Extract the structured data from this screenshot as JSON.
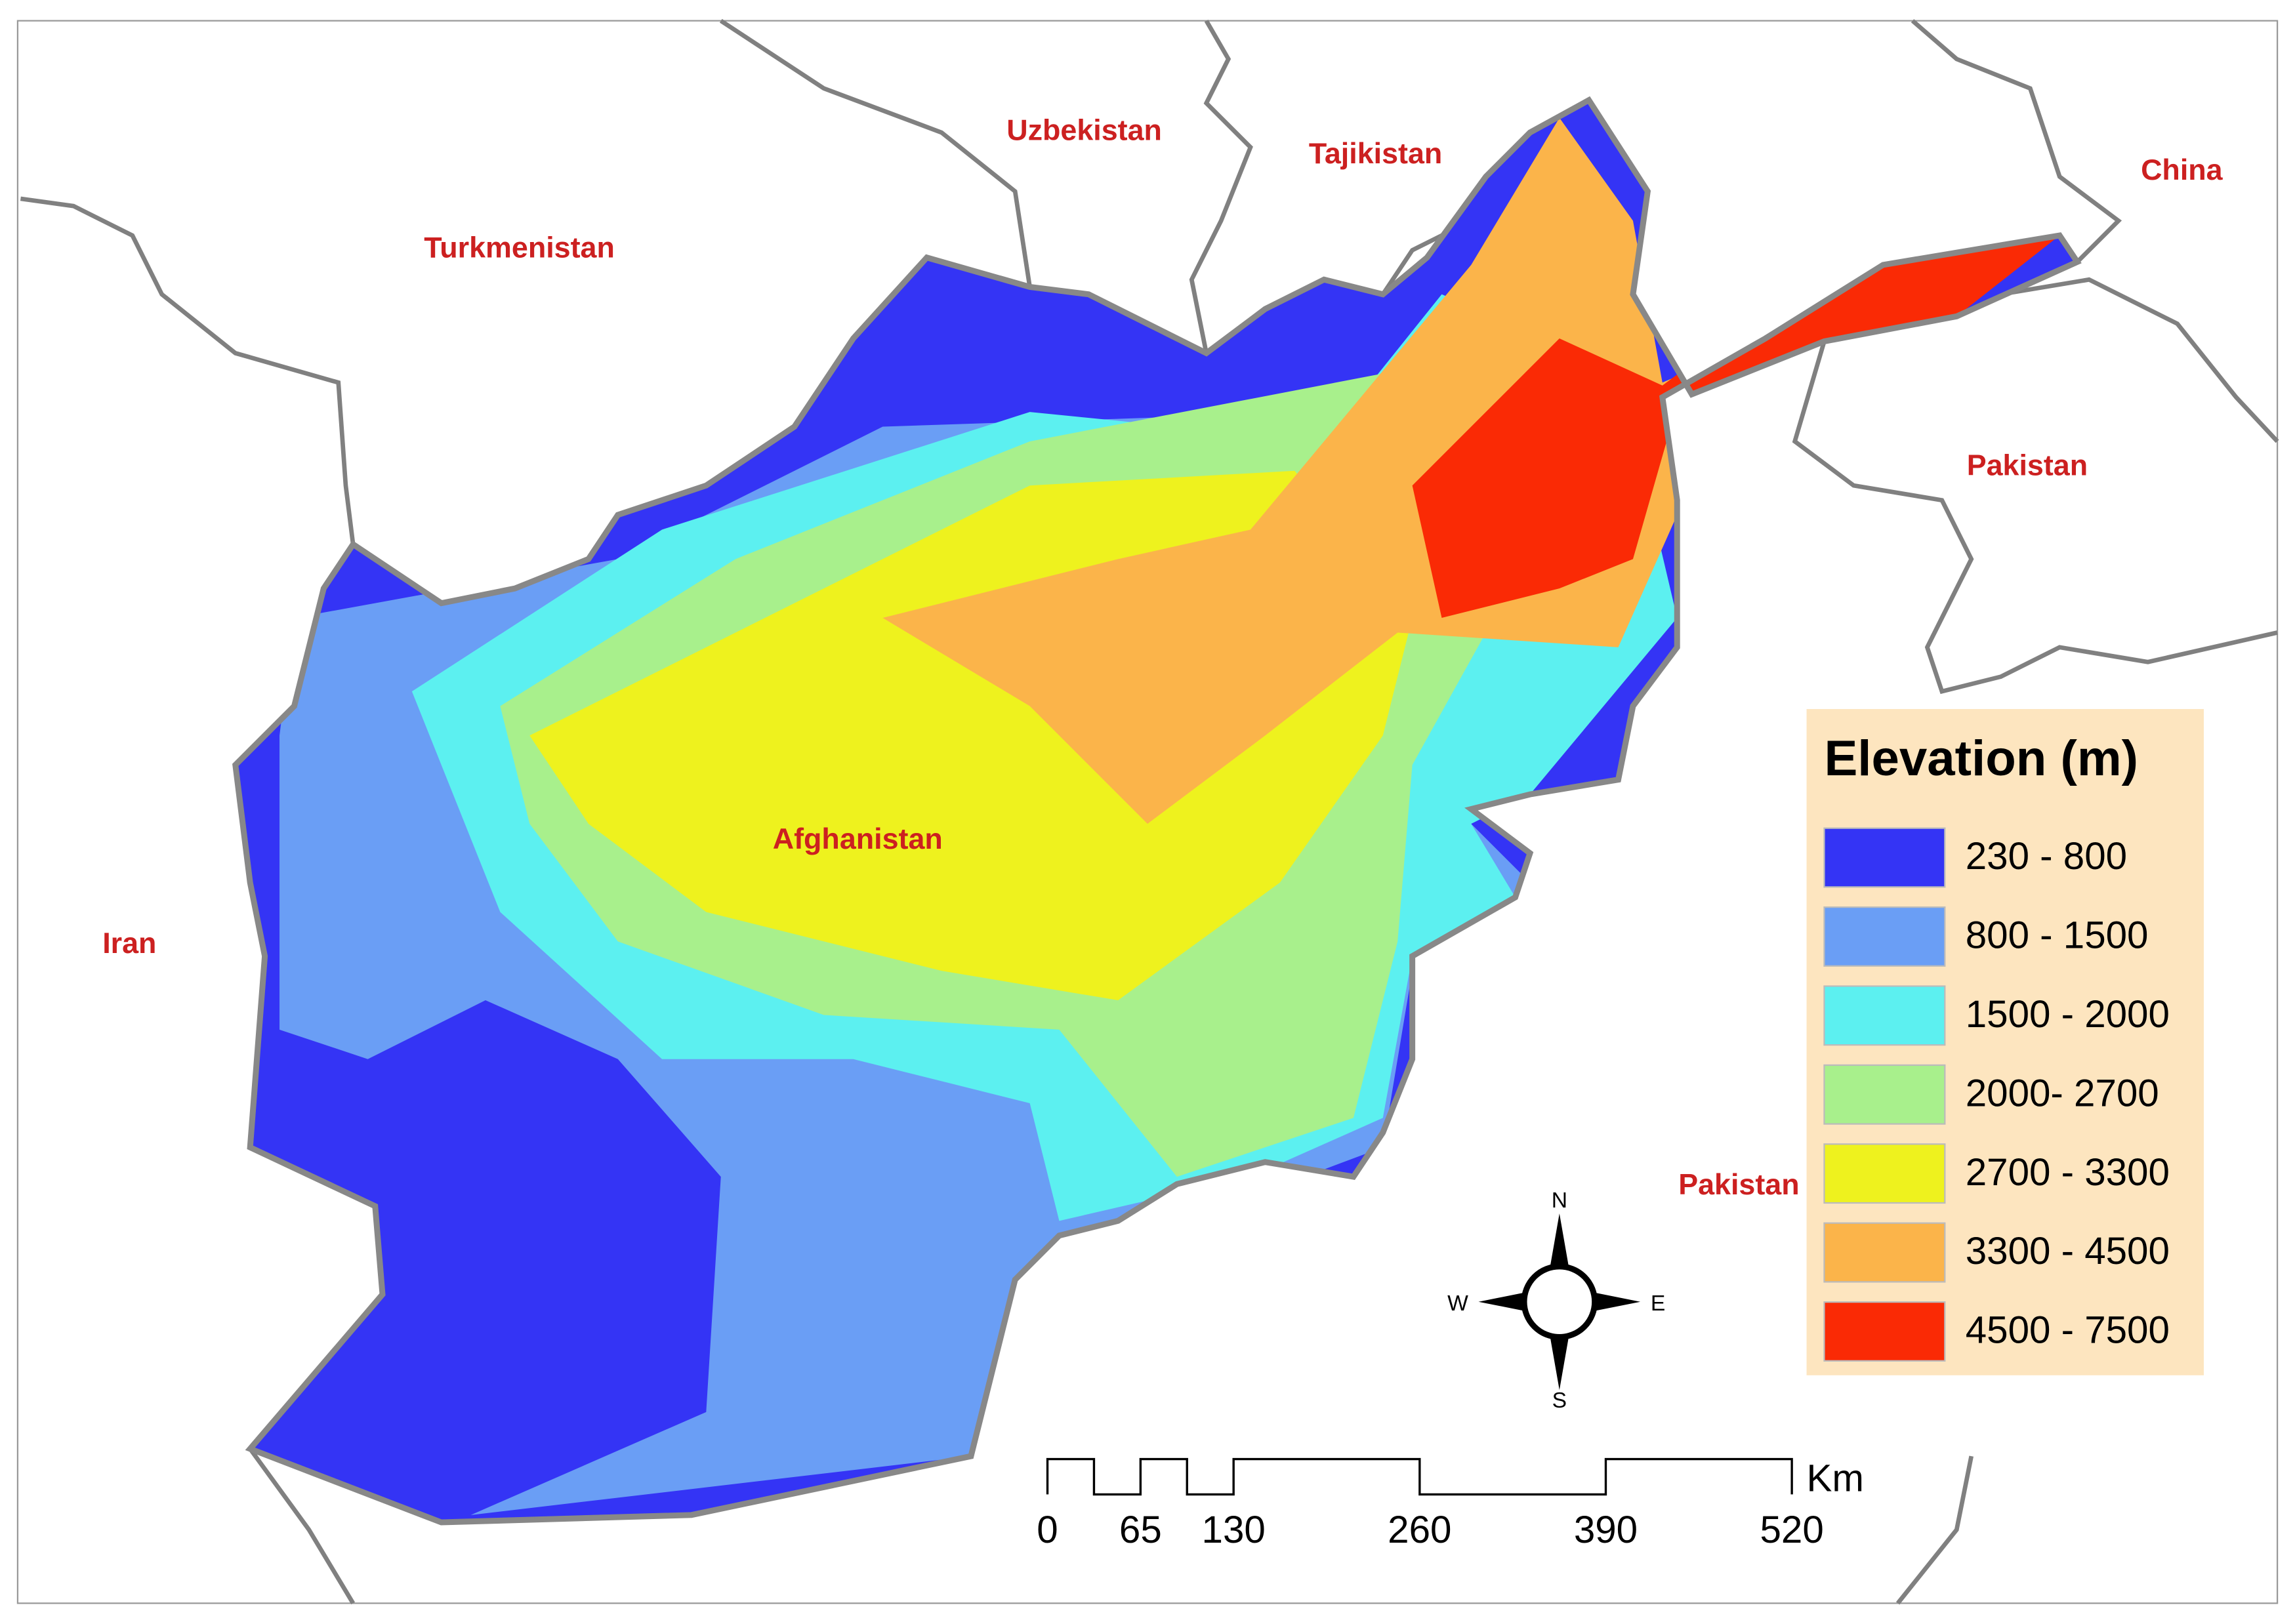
{
  "map": {
    "countries": [
      "Uzbekistan",
      "Tajikistan",
      "China",
      "Turkmenistan",
      "Pakistan",
      "Afghanistan",
      "Iran",
      "Pakistan"
    ],
    "legend": {
      "title": "Elevation (m)",
      "items": [
        {
          "label": "230 - 800",
          "color": "#3434f5"
        },
        {
          "label": "800 - 1500",
          "color": "#6a9ef5"
        },
        {
          "label": "1500 - 2000",
          "color": "#5cf0f0"
        },
        {
          "label": "2000- 2700",
          "color": "#a8f08c"
        },
        {
          "label": "2700 - 3300",
          "color": "#eef21e"
        },
        {
          "label": "3300 - 4500",
          "color": "#fbb44a"
        },
        {
          "label": "4500 - 7500",
          "color": "#fa2a05"
        }
      ]
    },
    "compass": {
      "n": "N",
      "e": "E",
      "s": "S",
      "w": "W"
    },
    "scale": {
      "unit": "Km",
      "ticks": [
        0,
        65,
        130,
        260,
        390,
        520
      ]
    }
  }
}
